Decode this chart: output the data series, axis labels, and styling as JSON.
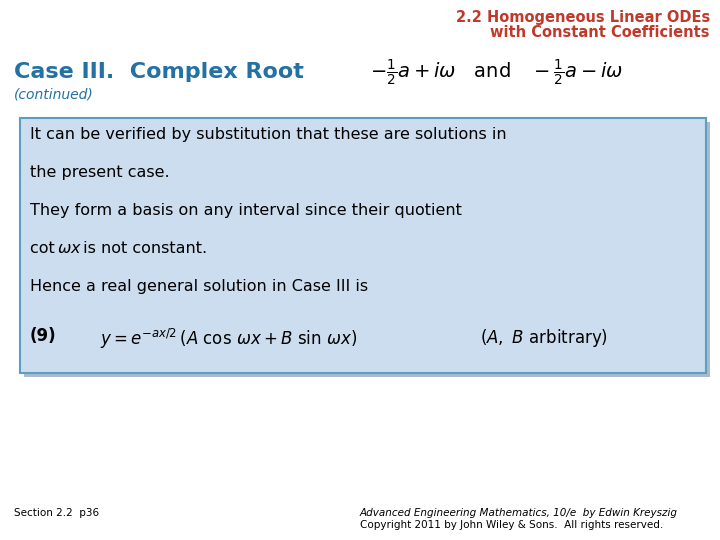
{
  "title_line1": "2.2 Homogeneous Linear ODEs",
  "title_line2": "with Constant Coefficients",
  "title_color": "#C0392B",
  "case_title": "Case III.  Complex Root",
  "case_title_color": "#2471A3",
  "continued_text": "(continued)",
  "continued_color": "#2471A3",
  "body_text_lines": [
    "It can be verified by substitution that these are solutions in",
    "the present case.",
    "They form a basis on any interval since their quotient",
    "cot ωx is not constant.",
    "Hence a real general solution in Case III is"
  ],
  "box_bg_color": "#CCDDEF",
  "box_border_color": "#5A9EC0",
  "shadow_color": "#AABBCC",
  "footer_left": "Section 2.2  p36",
  "footer_right_line1": "Advanced Engineering Mathematics, 10/e  by Edwin Kreyszig",
  "footer_right_line2": "Copyright 2011 by John Wiley & Sons.  All rights reserved.",
  "bg_color": "#FFFFFF",
  "title_fontsize": 10.5,
  "case_fontsize": 16,
  "continued_fontsize": 10,
  "body_fontsize": 11.5,
  "eq_fontsize": 12,
  "footer_fontsize": 7.5
}
